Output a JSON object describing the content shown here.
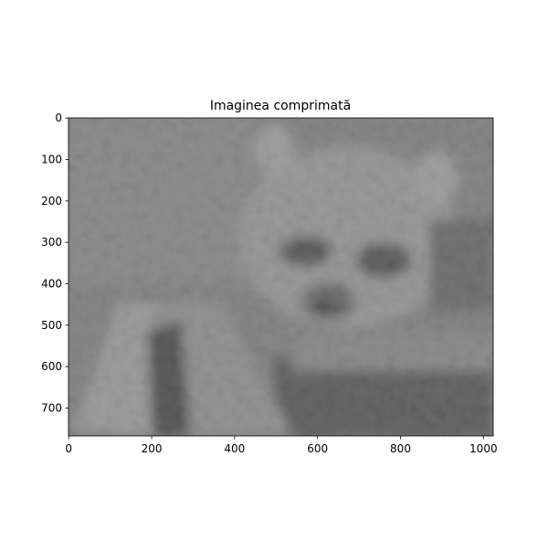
{
  "chart_data": {
    "type": "image",
    "title": "Imaginea comprimată",
    "xlim": [
      -0.5,
      1023.5
    ],
    "ylim": [
      767.5,
      -0.5
    ],
    "xticks": [
      0,
      200,
      400,
      600,
      800,
      1000
    ],
    "yticks": [
      0,
      100,
      200,
      300,
      400,
      500,
      600,
      700
    ],
    "colormap": "gray"
  }
}
